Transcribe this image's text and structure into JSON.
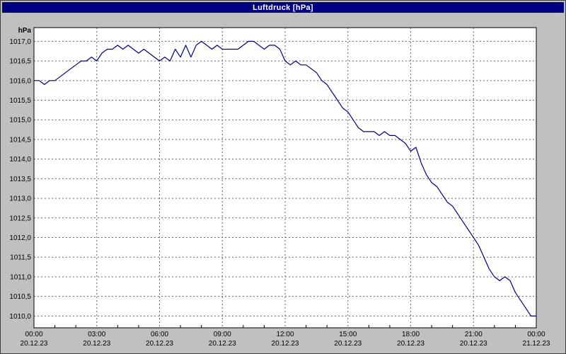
{
  "window": {
    "title": "Luftdruck [hPa]"
  },
  "colors": {
    "titlebar_bg": "#000080",
    "titlebar_text": "#ffffff",
    "background": "#c0c0c0",
    "plot_bg": "#ffffff",
    "line": "#000080",
    "grid": "#666666",
    "axis": "#000000"
  },
  "y_axis": {
    "unit": "hPa",
    "min": 1010.0,
    "max": 1017.0,
    "step": 0.5,
    "tick_labels": [
      "1017,0",
      "1016,5",
      "1016,0",
      "1015,5",
      "1015,0",
      "1014,5",
      "1014,0",
      "1013,5",
      "1013,0",
      "1012,5",
      "1012,0",
      "1011,5",
      "1011,0",
      "1010,5",
      "1010,0"
    ]
  },
  "x_axis": {
    "minor_step_hours": 1,
    "major_step_hours": 3,
    "ticks": [
      {
        "time": "00:00",
        "date": "20.12.23"
      },
      {
        "time": "03:00",
        "date": "20.12.23"
      },
      {
        "time": "06:00",
        "date": "20.12.23"
      },
      {
        "time": "09:00",
        "date": "20.12.23"
      },
      {
        "time": "12:00",
        "date": "20.12.23"
      },
      {
        "time": "15:00",
        "date": "20.12.23"
      },
      {
        "time": "18:00",
        "date": "20.12.23"
      },
      {
        "time": "21:00",
        "date": "20.12.23"
      },
      {
        "time": "00:00",
        "date": "21.12.23"
      }
    ]
  },
  "chart_data": {
    "type": "line",
    "title": "Luftdruck [hPa]",
    "xlabel": "",
    "ylabel": "hPa",
    "ylim": [
      1010.0,
      1017.0
    ],
    "xlim_hours": [
      0,
      24
    ],
    "grid": true,
    "legend": false,
    "series": [
      {
        "name": "Luftdruck",
        "color": "#000080",
        "x_hours": [
          0,
          0.25,
          0.5,
          0.75,
          1,
          1.25,
          1.5,
          1.75,
          2,
          2.25,
          2.5,
          2.75,
          3,
          3.25,
          3.5,
          3.75,
          4,
          4.25,
          4.5,
          4.75,
          5,
          5.25,
          5.5,
          5.75,
          6,
          6.25,
          6.5,
          6.75,
          7,
          7.25,
          7.5,
          7.75,
          8,
          8.25,
          8.5,
          8.75,
          9,
          9.25,
          9.5,
          9.75,
          10,
          10.25,
          10.5,
          10.75,
          11,
          11.25,
          11.5,
          11.75,
          12,
          12.25,
          12.5,
          12.75,
          13,
          13.25,
          13.5,
          13.75,
          14,
          14.25,
          14.5,
          14.75,
          15,
          15.25,
          15.5,
          15.75,
          16,
          16.25,
          16.5,
          16.75,
          17,
          17.25,
          17.5,
          17.75,
          18,
          18.25,
          18.5,
          18.75,
          19,
          19.25,
          19.5,
          19.75,
          20,
          20.25,
          20.5,
          20.75,
          21,
          21.25,
          21.5,
          21.75,
          22,
          22.25,
          22.5,
          22.75,
          23,
          23.25,
          23.5,
          23.75,
          24
        ],
        "values": [
          1016.0,
          1016.0,
          1015.9,
          1016.0,
          1016.0,
          1016.1,
          1016.2,
          1016.3,
          1016.4,
          1016.5,
          1016.5,
          1016.6,
          1016.5,
          1016.7,
          1016.8,
          1016.8,
          1016.9,
          1016.8,
          1016.9,
          1016.8,
          1016.7,
          1016.8,
          1016.7,
          1016.6,
          1016.5,
          1016.6,
          1016.5,
          1016.8,
          1016.6,
          1016.9,
          1016.6,
          1016.9,
          1017.0,
          1016.9,
          1016.8,
          1016.9,
          1016.8,
          1016.8,
          1016.8,
          1016.8,
          1016.9,
          1017.0,
          1017.0,
          1016.9,
          1016.8,
          1016.9,
          1016.9,
          1016.8,
          1016.5,
          1016.4,
          1016.5,
          1016.4,
          1016.4,
          1016.3,
          1016.2,
          1016.0,
          1015.9,
          1015.7,
          1015.5,
          1015.3,
          1015.2,
          1015.0,
          1014.8,
          1014.7,
          1014.7,
          1014.7,
          1014.6,
          1014.7,
          1014.6,
          1014.6,
          1014.5,
          1014.4,
          1014.2,
          1014.3,
          1013.9,
          1013.6,
          1013.4,
          1013.3,
          1013.1,
          1012.9,
          1012.8,
          1012.6,
          1012.4,
          1012.2,
          1012.0,
          1011.8,
          1011.5,
          1011.2,
          1011.0,
          1010.9,
          1011.0,
          1010.9,
          1010.6,
          1010.4,
          1010.2,
          1010.0,
          1010.0
        ]
      }
    ]
  }
}
